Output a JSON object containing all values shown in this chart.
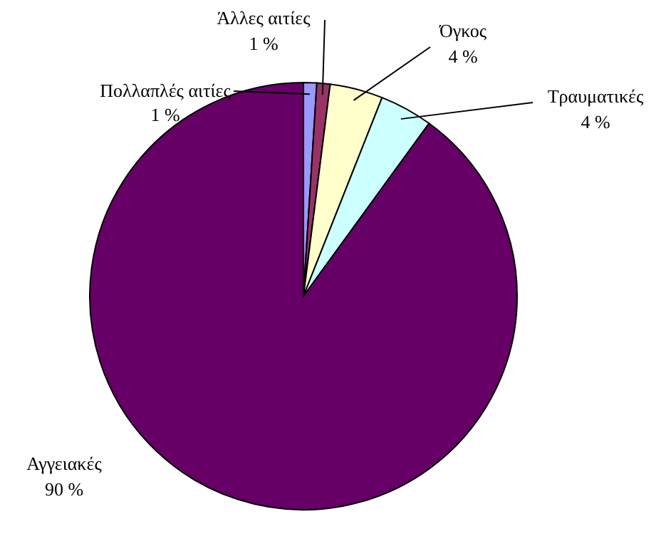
{
  "chart_data": {
    "type": "pie",
    "categories": [
      "Πολλαπλές αιτίες",
      "Άλλες αιτίες",
      "Όγκος",
      "Τραυματικές",
      "Αγγειακές"
    ],
    "values": [
      1,
      1,
      4,
      4,
      90
    ],
    "value_labels": [
      "1 %",
      "1 %",
      "4 %",
      "4 %",
      "90 %"
    ],
    "colors": [
      "#9999ff",
      "#993366",
      "#ffffcc",
      "#ccffff",
      "#660066"
    ]
  }
}
